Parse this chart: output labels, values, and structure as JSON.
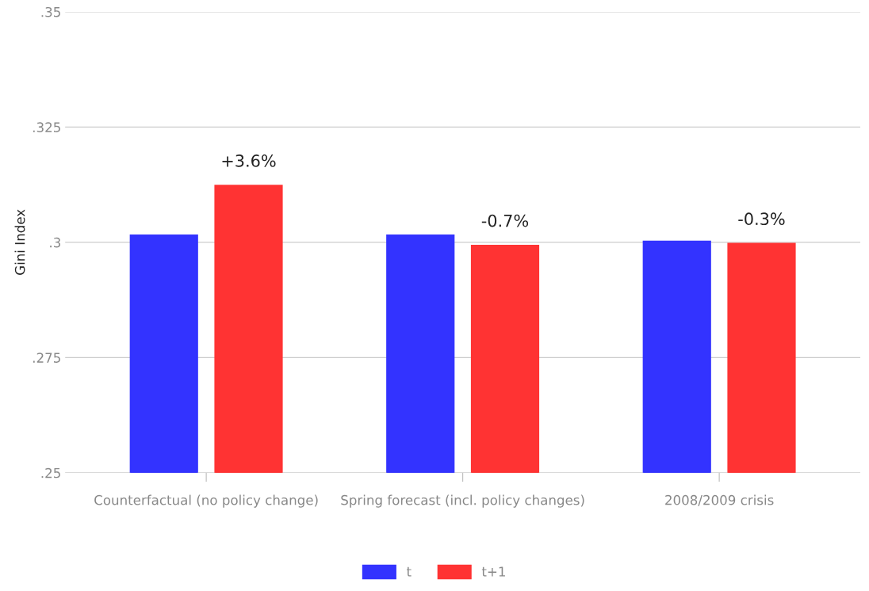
{
  "chart_data": {
    "type": "bar",
    "ylabel": "Gini Index",
    "categories": [
      "Counterfactual (no policy change)",
      "Spring forecast (incl. policy changes)",
      "2008/2009 crisis"
    ],
    "series": [
      {
        "name": "t",
        "color": "#3333ff",
        "values": [
          0.3015,
          0.3015,
          0.3002
        ]
      },
      {
        "name": "t+1",
        "color": "#ff3333",
        "values": [
          0.3123,
          0.2993,
          0.2997
        ]
      }
    ],
    "annotations": [
      "+3.6%",
      "-0.7%",
      "-0.3%"
    ],
    "ylim": [
      0.25,
      0.35
    ],
    "yticks": [
      {
        "value": 0.25,
        "label": ".25"
      },
      {
        "value": 0.275,
        "label": ".275"
      },
      {
        "value": 0.3,
        "label": ".3"
      },
      {
        "value": 0.325,
        "label": ".325"
      },
      {
        "value": 0.35,
        "label": ".35"
      }
    ],
    "grid": "y",
    "legend": "bottom"
  }
}
